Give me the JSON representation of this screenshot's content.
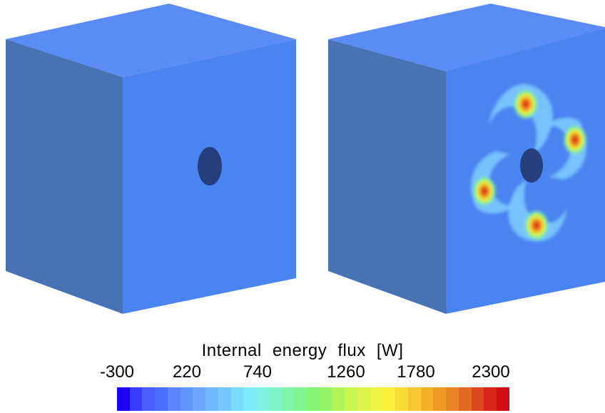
{
  "legend": {
    "title": "Internal  energy  flux    [W]",
    "ticks": [
      "-300",
      "220",
      "740",
      "1260",
      "1780",
      "2300"
    ],
    "colors": [
      "#1c00ff",
      "#3a3cff",
      "#4a5dff",
      "#4a6eff",
      "#5b86ff",
      "#5f95ff",
      "#6aa6ff",
      "#6fb8ff",
      "#74c8ff",
      "#79dbff",
      "#7eecf8",
      "#80f4e0",
      "#7ff5c6",
      "#80f5ab",
      "#80f58e",
      "#86f575",
      "#97f566",
      "#b1f55a",
      "#c8f550",
      "#dcf548",
      "#eef540",
      "#f9ef3a",
      "#f9db35",
      "#f9c731",
      "#f6b02c",
      "#f09a28",
      "#e98324",
      "#e26a20",
      "#dc4a1c",
      "#d62718",
      "#d00f14"
    ]
  },
  "cubes": {
    "left": {
      "face_color": "#4a84f0",
      "hole_color": "#243f7a"
    },
    "right": {
      "face_color": "#4a84f0",
      "hole_color": "#243f7a"
    }
  }
}
